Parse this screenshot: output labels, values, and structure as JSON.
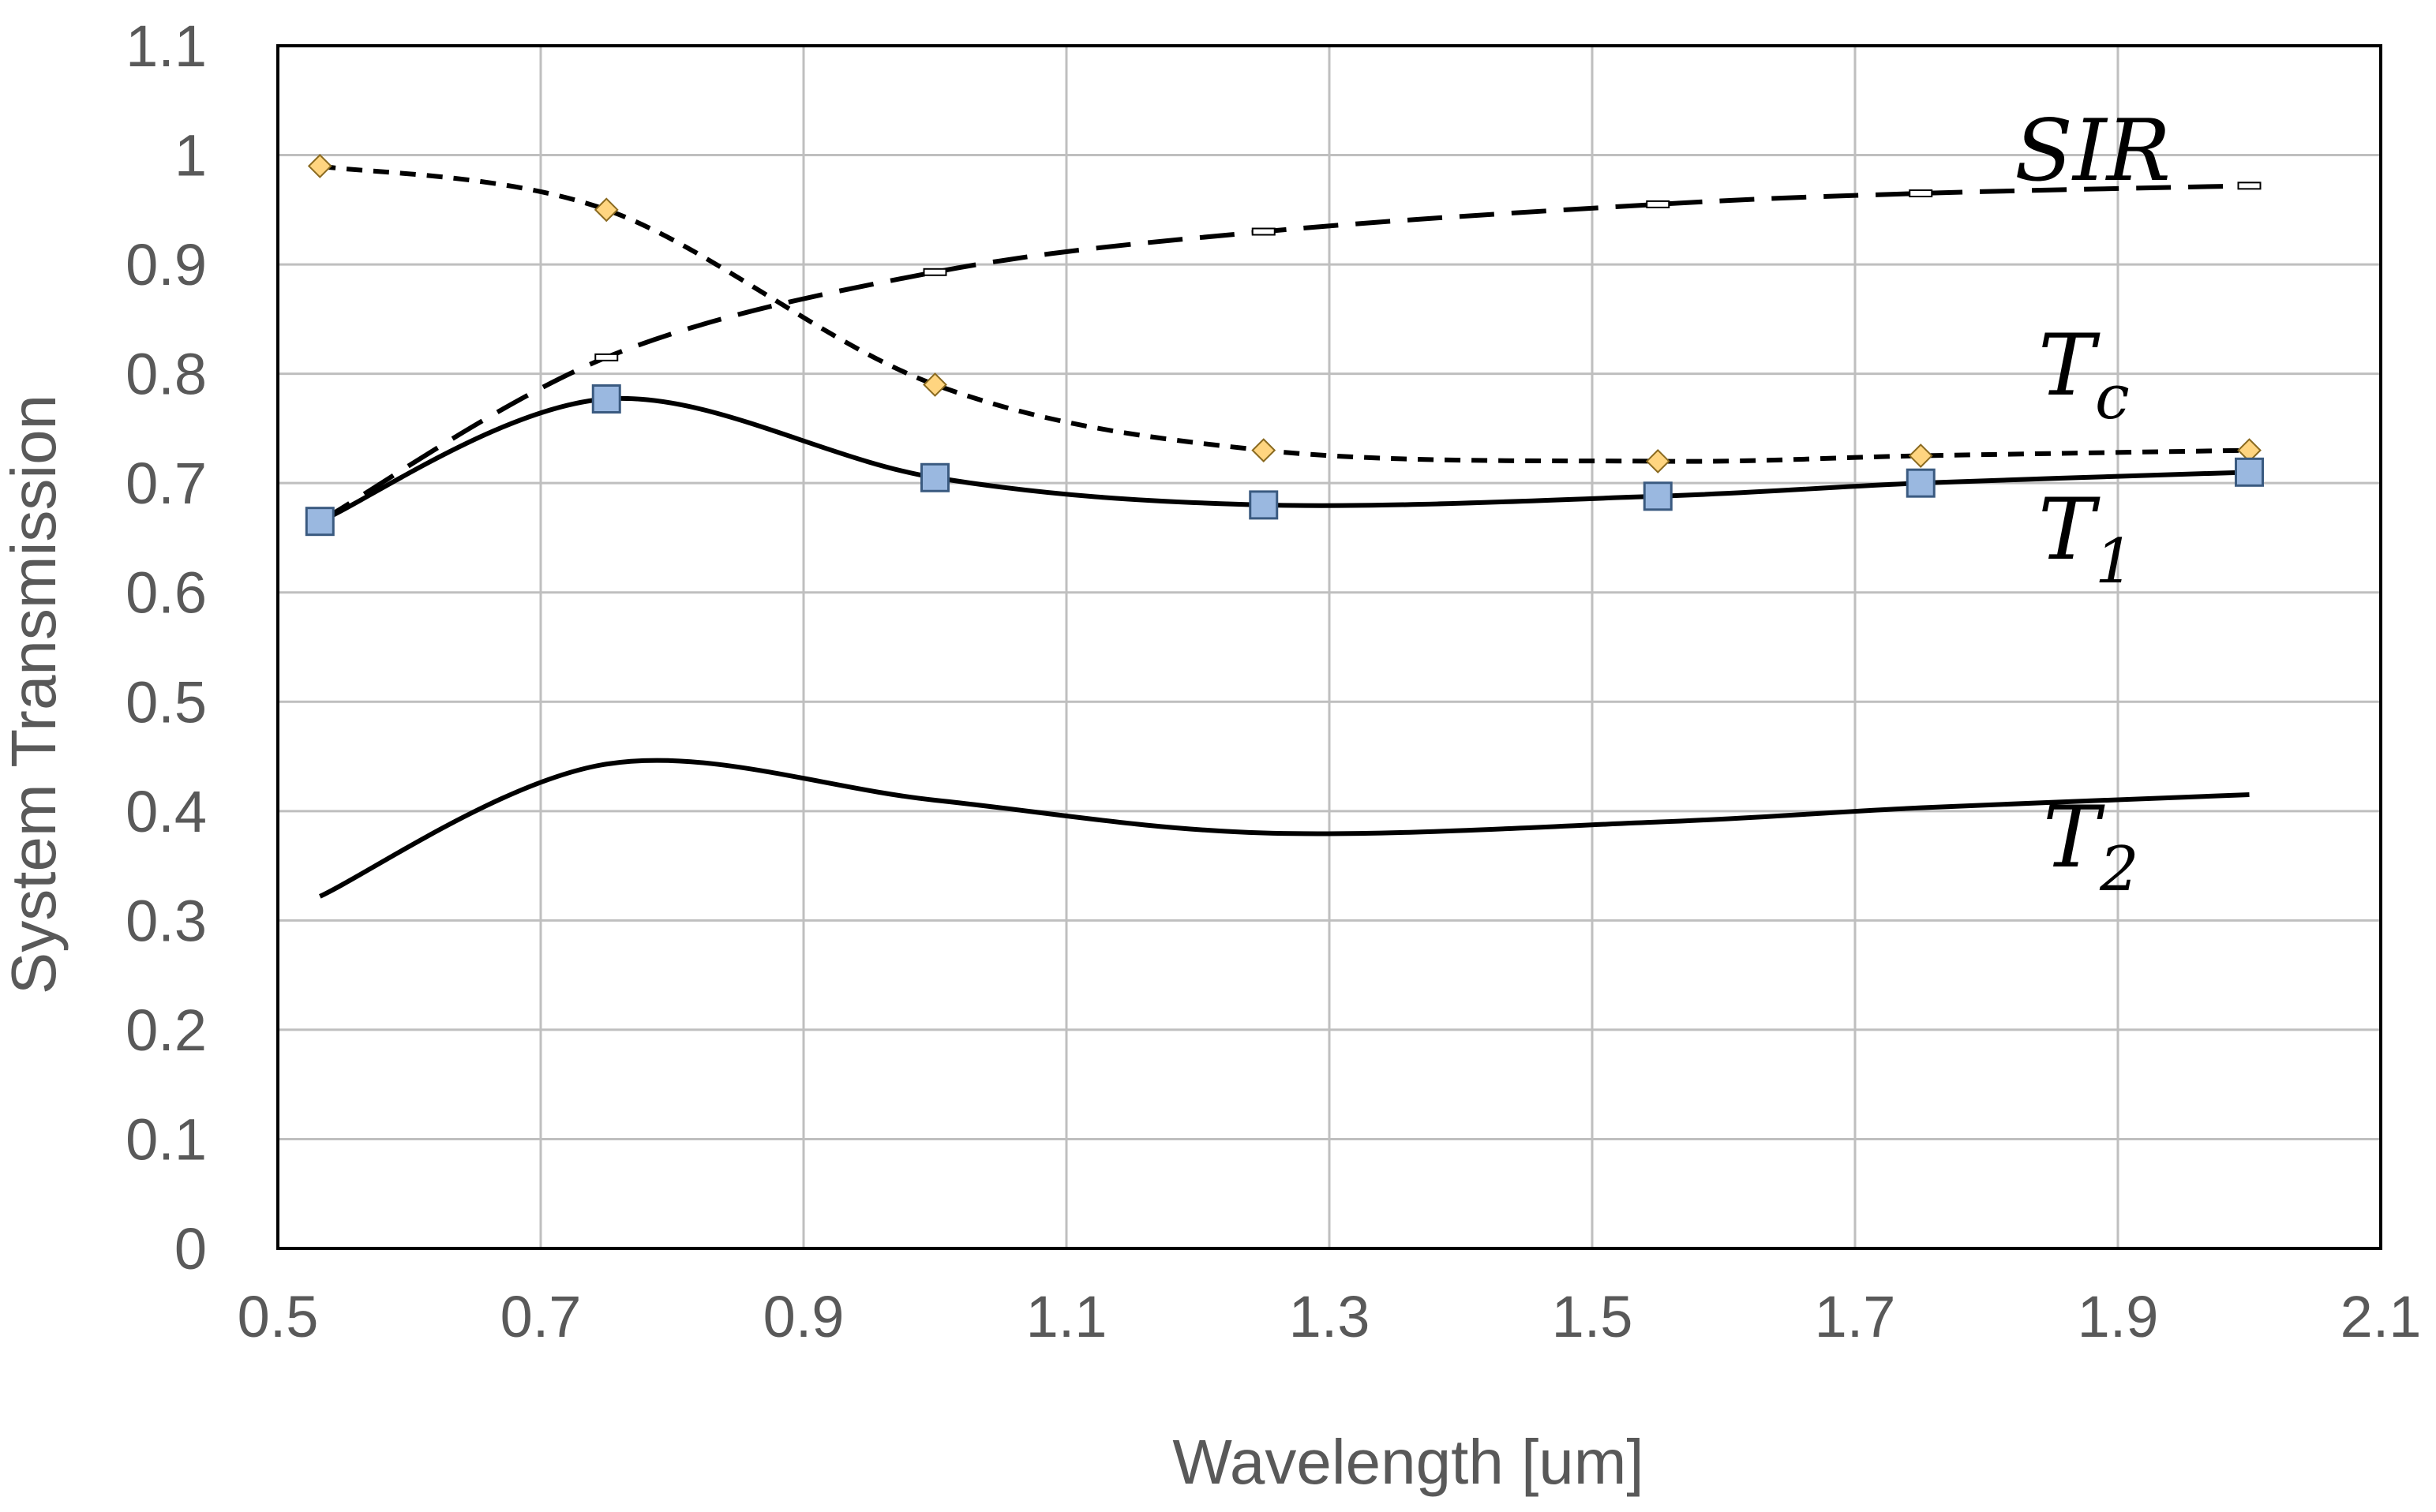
{
  "chart_data": {
    "type": "line",
    "title": "",
    "xlabel": "Wavelength [um]",
    "ylabel": "System Transmission",
    "xlim": [
      0.5,
      2.1
    ],
    "ylim": [
      0,
      1.1
    ],
    "xticks": [
      0.5,
      0.7,
      0.9,
      1.1,
      1.3,
      1.5,
      1.7,
      1.9,
      2.1
    ],
    "yticks": [
      0,
      0.1,
      0.2,
      0.3,
      0.4,
      0.5,
      0.6,
      0.7,
      0.8,
      0.9,
      1,
      1.1
    ],
    "xtick_labels": [
      "0.5",
      "0.7",
      "0.9",
      "1.1",
      "1.3",
      "1.5",
      "1.7",
      "1.9",
      "2.1"
    ],
    "ytick_labels": [
      "0",
      "0.1",
      "0.2",
      "0.3",
      "0.4",
      "0.5",
      "0.6",
      "0.7",
      "0.8",
      "0.9",
      "1",
      "1.1"
    ],
    "grid": true,
    "series": [
      {
        "name": "SIR",
        "label_main": "SIR",
        "label_sub": "",
        "line_style": "long-dash",
        "marker": "dash",
        "color": "#000000",
        "x": [
          0.532,
          0.75,
          1.0,
          1.25,
          1.55,
          1.75,
          2.0
        ],
        "y": [
          0.665,
          0.815,
          0.893,
          0.93,
          0.955,
          0.965,
          0.972
        ]
      },
      {
        "name": "Tc",
        "label_main": "T",
        "label_sub": "c",
        "line_style": "short-dash",
        "marker": "diamond",
        "marker_color": "#ffd580",
        "color": "#000000",
        "x": [
          0.532,
          0.75,
          1.0,
          1.25,
          1.55,
          1.75,
          2.0
        ],
        "y": [
          0.99,
          0.95,
          0.79,
          0.73,
          0.72,
          0.725,
          0.73
        ]
      },
      {
        "name": "T1",
        "label_main": "T",
        "label_sub": "1",
        "line_style": "solid",
        "marker": "square",
        "marker_color": "#9ab8e0",
        "color": "#000000",
        "x": [
          0.532,
          0.75,
          1.0,
          1.25,
          1.55,
          1.75,
          2.0
        ],
        "y": [
          0.665,
          0.777,
          0.705,
          0.68,
          0.688,
          0.7,
          0.71
        ]
      },
      {
        "name": "T2",
        "label_main": "T",
        "label_sub": "2",
        "line_style": "solid",
        "marker": "none",
        "color": "#000000",
        "x": [
          0.532,
          0.75,
          1.0,
          1.25,
          1.55,
          1.75,
          2.0
        ],
        "y": [
          0.322,
          0.443,
          0.41,
          0.38,
          0.39,
          0.403,
          0.415
        ]
      }
    ]
  }
}
